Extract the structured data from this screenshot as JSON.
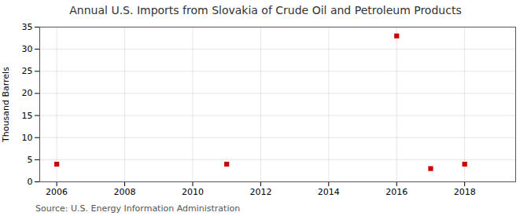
{
  "chart_data": {
    "type": "scatter",
    "title": "Annual U.S. Imports from Slovakia of Crude Oil and Petroleum Products",
    "ylabel": "Thousand Barrels",
    "source": "Source: U.S. Energy Information Administration",
    "x": [
      2006,
      2011,
      2016,
      2017,
      2018
    ],
    "values": [
      4,
      4,
      33,
      3,
      4
    ],
    "color": "#cc0000",
    "marker": "square",
    "xlim": [
      2005.5,
      2019.5
    ],
    "ylim": [
      0,
      35
    ],
    "xticks": [
      2006,
      2008,
      2010,
      2012,
      2014,
      2016,
      2018
    ],
    "yticks": [
      0,
      5,
      10,
      15,
      20,
      25,
      30,
      35
    ],
    "grid": true
  }
}
